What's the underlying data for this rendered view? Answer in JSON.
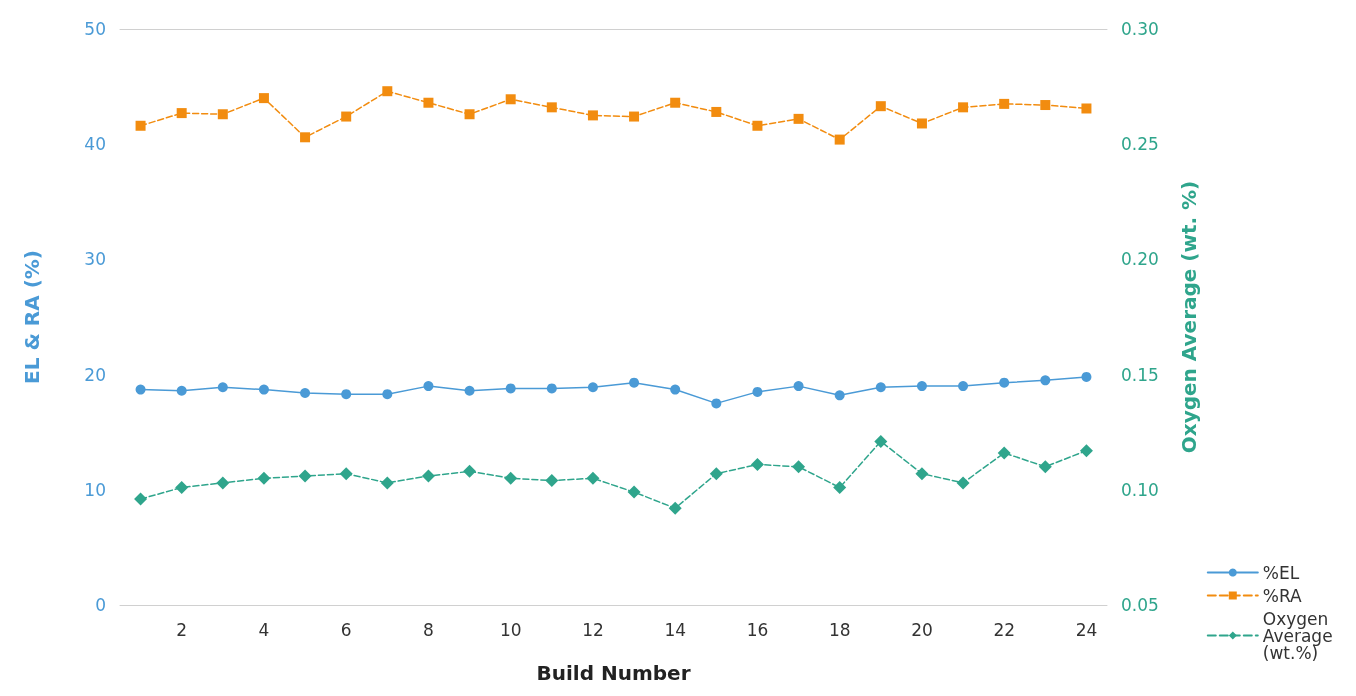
{
  "chart_data": {
    "type": "line",
    "xlabel": "Build Number",
    "ylabel": "EL & RA (%)",
    "y2label": "Oxygen Average (wt. %)",
    "x": [
      1,
      2,
      3,
      4,
      5,
      6,
      7,
      8,
      9,
      10,
      11,
      12,
      13,
      14,
      15,
      16,
      17,
      18,
      19,
      20,
      21,
      22,
      23,
      24
    ],
    "xlim": [
      0.5,
      24.5
    ],
    "xticks": [
      2,
      4,
      6,
      8,
      10,
      12,
      14,
      16,
      18,
      20,
      22,
      24
    ],
    "ylim": [
      0,
      50
    ],
    "yticks": [
      0,
      10,
      20,
      30,
      40,
      50
    ],
    "y2lim": [
      0.05,
      0.3
    ],
    "y2ticks": [
      0.05,
      {
        "value": 0.1,
        "label": "0.10"
      },
      0.15,
      {
        "value": 0.2,
        "label": "0.20"
      },
      0.25,
      {
        "value": 0.3,
        "label": "0.30"
      }
    ],
    "grid": false,
    "legend": "bottom right",
    "series": [
      {
        "name": "%EL",
        "color": "#4a9ad6",
        "marker": "circle",
        "line_style": "solid",
        "values": [
          18.7,
          18.6,
          18.9,
          18.7,
          18.4,
          18.3,
          18.3,
          19.0,
          18.6,
          18.8,
          18.8,
          18.9,
          19.3,
          18.7,
          17.5,
          18.5,
          19.0,
          18.2,
          18.9,
          19.0,
          19.0,
          19.3,
          19.5,
          19.8
        ]
      },
      {
        "name": "%RA",
        "color": "#f28c0f",
        "marker": "square",
        "line_style": "dashed",
        "values": [
          41.6,
          42.7,
          42.6,
          44.0,
          40.6,
          42.4,
          44.6,
          43.6,
          42.6,
          43.9,
          43.2,
          42.5,
          42.4,
          43.6,
          42.8,
          41.6,
          42.2,
          40.4,
          43.3,
          41.8,
          43.2,
          43.5,
          43.4,
          43.1
        ]
      },
      {
        "name": "Oxygen Average (wt.%)",
        "color": "#2fa58c",
        "marker": "diamond",
        "line_style": "dashed",
        "axis": "y2",
        "values": [
          0.096,
          0.101,
          0.103,
          0.105,
          0.106,
          0.107,
          0.103,
          0.106,
          0.108,
          0.105,
          0.104,
          0.105,
          0.099,
          0.092,
          0.107,
          0.111,
          0.11,
          0.101,
          0.121,
          0.107,
          0.103,
          0.116,
          0.11,
          0.117
        ]
      }
    ]
  }
}
